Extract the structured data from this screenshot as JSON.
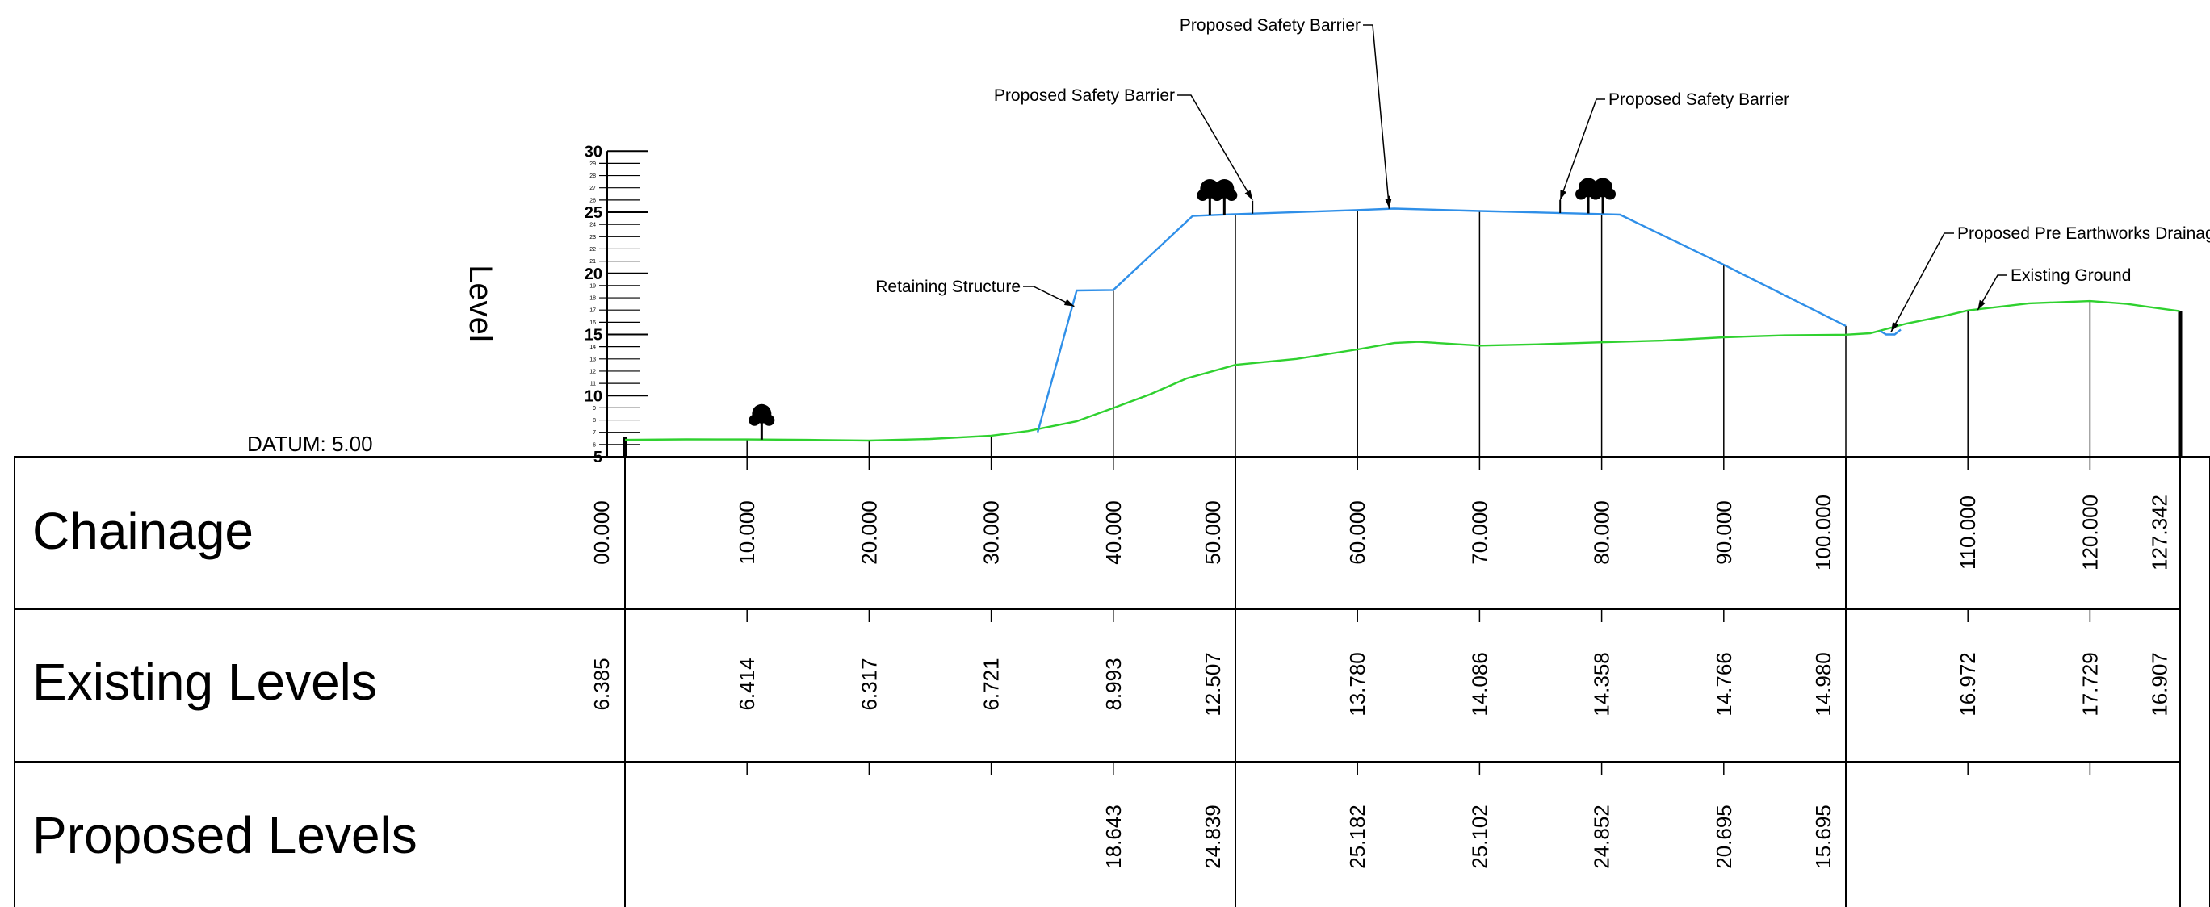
{
  "datum_label": "DATUM: 5.00",
  "level_axis": {
    "label": "Level",
    "min": 5,
    "max": 30,
    "major_ticks": [
      5,
      10,
      15,
      20,
      25,
      30
    ]
  },
  "table": {
    "rows": [
      {
        "title": "Chainage"
      },
      {
        "title": "Existing Levels"
      },
      {
        "title": "Proposed Levels"
      }
    ]
  },
  "stations": [
    {
      "chainage": 0,
      "chainage_label": "00.000",
      "existing": "6.385",
      "proposed": ""
    },
    {
      "chainage": 10,
      "chainage_label": "10.000",
      "existing": "6.414",
      "proposed": ""
    },
    {
      "chainage": 20,
      "chainage_label": "20.000",
      "existing": "6.317",
      "proposed": ""
    },
    {
      "chainage": 30,
      "chainage_label": "30.000",
      "existing": "6.721",
      "proposed": ""
    },
    {
      "chainage": 40,
      "chainage_label": "40.000",
      "existing": "8.993",
      "proposed": "18.643"
    },
    {
      "chainage": 50,
      "chainage_label": "50.000",
      "existing": "12.507",
      "proposed": "24.839"
    },
    {
      "chainage": 60,
      "chainage_label": "60.000",
      "existing": "13.780",
      "proposed": "25.182"
    },
    {
      "chainage": 70,
      "chainage_label": "70.000",
      "existing": "14.086",
      "proposed": "25.102"
    },
    {
      "chainage": 80,
      "chainage_label": "80.000",
      "existing": "14.358",
      "proposed": "24.852"
    },
    {
      "chainage": 90,
      "chainage_label": "90.000",
      "existing": "14.766",
      "proposed": "20.695"
    },
    {
      "chainage": 100,
      "chainage_label": "100.000",
      "existing": "14.980",
      "proposed": "15.695"
    },
    {
      "chainage": 110,
      "chainage_label": "110.000",
      "existing": "16.972",
      "proposed": ""
    },
    {
      "chainage": 120,
      "chainage_label": "120.000",
      "existing": "17.729",
      "proposed": ""
    },
    {
      "chainage": 127.342,
      "chainage_label": "127.342",
      "existing": "16.907",
      "proposed": ""
    }
  ],
  "existing_ground_profile": [
    [
      0,
      6.38
    ],
    [
      5,
      6.42
    ],
    [
      10,
      6.41
    ],
    [
      15,
      6.38
    ],
    [
      20,
      6.32
    ],
    [
      25,
      6.45
    ],
    [
      30,
      6.72
    ],
    [
      33,
      7.1
    ],
    [
      37,
      7.9
    ],
    [
      40,
      8.99
    ],
    [
      43,
      10.1
    ],
    [
      46,
      11.4
    ],
    [
      50,
      12.51
    ],
    [
      55,
      13.0
    ],
    [
      60,
      13.78
    ],
    [
      63,
      14.3
    ],
    [
      65,
      14.4
    ],
    [
      70,
      14.09
    ],
    [
      75,
      14.2
    ],
    [
      80,
      14.36
    ],
    [
      85,
      14.5
    ],
    [
      90,
      14.77
    ],
    [
      95,
      14.93
    ],
    [
      100,
      14.98
    ],
    [
      102,
      15.1
    ],
    [
      105,
      15.9
    ],
    [
      108,
      16.5
    ],
    [
      110,
      16.97
    ],
    [
      115,
      17.55
    ],
    [
      120,
      17.73
    ],
    [
      123,
      17.5
    ],
    [
      127.342,
      16.91
    ]
  ],
  "proposed_profile": [
    [
      33.8,
      7.0
    ],
    [
      37,
      18.6
    ],
    [
      40,
      18.64
    ],
    [
      46.5,
      24.7
    ],
    [
      50,
      24.84
    ],
    [
      60,
      25.18
    ],
    [
      63,
      25.3
    ],
    [
      70,
      25.1
    ],
    [
      80,
      24.85
    ],
    [
      81.5,
      24.8
    ],
    [
      90,
      20.7
    ],
    [
      100,
      15.7
    ]
  ],
  "drain_profile": [
    [
      102.8,
      15.3
    ],
    [
      103.3,
      15.0
    ],
    [
      104.0,
      15.0
    ],
    [
      104.5,
      15.4
    ]
  ],
  "barriers": [
    {
      "chainage": 51.4
    },
    {
      "chainage": 62.6
    },
    {
      "chainage": 76.6
    }
  ],
  "trees": [
    {
      "chainage": 11.2,
      "level": 6.4,
      "count": 1
    },
    {
      "chainage": 48.5,
      "level": 24.8,
      "count": 2
    },
    {
      "chainage": 79.5,
      "level": 24.9,
      "count": 2
    }
  ],
  "annotations": [
    {
      "text": "Proposed Safety Barrier",
      "target_chainage": 51.4,
      "target_level": 26.0,
      "placement": "upper-left"
    },
    {
      "text": "Proposed Safety Barrier",
      "target_chainage": 62.6,
      "target_level": 25.3,
      "placement": "top"
    },
    {
      "text": "Proposed Safety Barrier",
      "target_chainage": 76.6,
      "target_level": 26.0,
      "placement": "upper-right"
    },
    {
      "text": "Retaining Structure",
      "target_chainage": 36.8,
      "target_level": 17.3,
      "placement": "left"
    },
    {
      "text": "Proposed Pre Earthworks Drainage",
      "target_chainage": 103.7,
      "target_level": 15.2,
      "placement": "upper-right"
    },
    {
      "text": "Existing Ground",
      "target_chainage": 110.8,
      "target_level": 17.0,
      "placement": "upper-right"
    }
  ],
  "colors": {
    "existing_ground": "#2fd12f",
    "proposed": "#2f8fe8",
    "lines": "#000000"
  }
}
